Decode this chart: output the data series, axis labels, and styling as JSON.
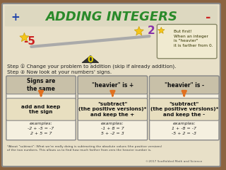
{
  "bg_color": "#d4c9a8",
  "card_bg": "#e8e0c8",
  "white_bg": "#f5f0e0",
  "title": "ADDING INTEGERS",
  "title_color": "#2a8a2a",
  "title_plus_color": "#2244aa",
  "title_minus_color": "#cc2222",
  "scale_color": "#aaaaaa",
  "triangle_color": "#222222",
  "num_left": "-5",
  "num_right": "2",
  "num_center": "0",
  "num_color_left": "#cc2222",
  "num_color_right": "#8833aa",
  "num_color_center": "#aaaa00",
  "star_color": "#f5c518",
  "note_text": "But first!\nWhen an integer\nis \"heavier\"\nit is farther from 0.",
  "step1": "Step ① Change your problem to addition (skip if already addition).",
  "step2": "Step ② Now look at your numbers' signs.",
  "col1_header": "Signs are\nthe same",
  "col2_header": "\"heavier\" is +",
  "col3_header": "\"heavier\" is -",
  "col1_body": "add and keep\nthe sign",
  "col2_body": "\"subtract\"\n(the positive versions)*\nand keep the +",
  "col3_body": "\"subtract\"\n(the positive versions)*\nand keep the -",
  "col1_examples": "examples:\n-2 + -5 = -7\n2 + 5 = 7",
  "col2_examples": "examples:\n-1 + 8 = 7\n5 + -2 = 3",
  "col3_examples": "examples:\n1 + -8 = -7\n-5 + 2 = -3",
  "arrow_color": "#e07020",
  "header_border": "#888888",
  "body_border": "#888888",
  "outer_border": "#888888",
  "footnote": "*About \"subtract\": What we're really doing is subtracting the absolute values (the positive versions)\nof the two numbers. This allows us to find how much farther from zero the heavier number is.",
  "credit": "©2017 Scaffolded Math and Science"
}
